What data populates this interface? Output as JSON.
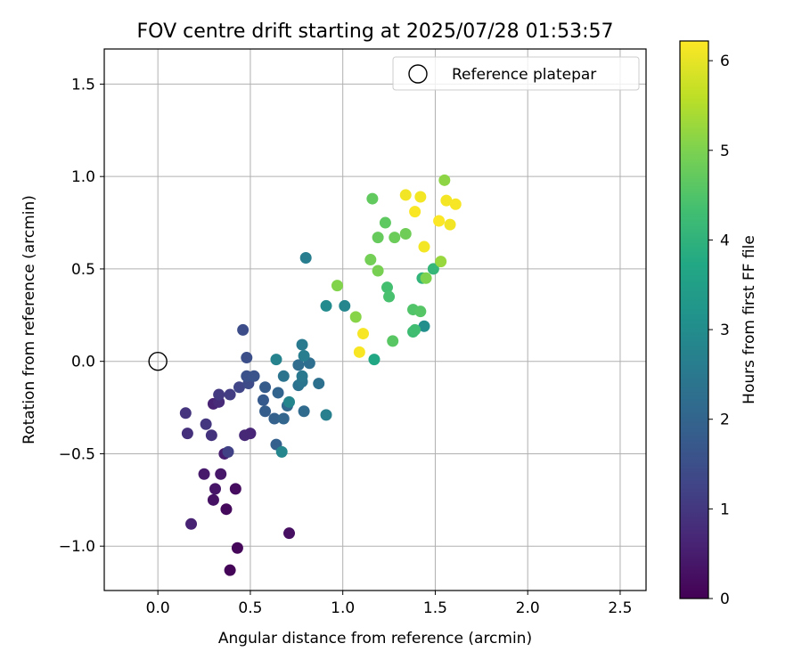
{
  "chart_data": {
    "type": "scatter",
    "title": "FOV centre drift starting at 2025/07/28 01:53:57",
    "xlabel": "Angular distance from reference (arcmin)",
    "ylabel": "Rotation from reference (arcmin)",
    "xlim": [
      -0.29,
      2.64
    ],
    "ylim": [
      -1.24,
      1.69
    ],
    "xticks": [
      0.0,
      0.5,
      1.0,
      1.5,
      2.0,
      2.5
    ],
    "xtick_labels": [
      "0.0",
      "0.5",
      "1.0",
      "1.5",
      "2.0",
      "2.5"
    ],
    "yticks": [
      -1.0,
      -0.5,
      0.0,
      0.5,
      1.0,
      1.5
    ],
    "ytick_labels": [
      "−1.0",
      "−0.5",
      "0.0",
      "0.5",
      "1.0",
      "1.5"
    ],
    "grid": true,
    "legend": {
      "placement": "top-right",
      "entries": [
        "Reference platepar"
      ]
    },
    "reference_point": {
      "x": 0.0,
      "y": 0.0
    },
    "colorbar": {
      "label": "Hours from first FF file",
      "colormap": "viridis",
      "range": [
        0,
        6.22
      ],
      "ticks": [
        0,
        1,
        2,
        3,
        4,
        5,
        6
      ],
      "tick_labels": [
        "0",
        "1",
        "2",
        "3",
        "4",
        "5",
        "6"
      ]
    },
    "points": [
      {
        "x": 0.39,
        "y": -1.13,
        "hours": 0.05
      },
      {
        "x": 0.43,
        "y": -1.01,
        "hours": 0.1
      },
      {
        "x": 0.37,
        "y": -0.8,
        "hours": 0.15
      },
      {
        "x": 0.42,
        "y": -0.69,
        "hours": 0.2
      },
      {
        "x": 0.71,
        "y": -0.93,
        "hours": 0.25
      },
      {
        "x": 0.3,
        "y": -0.75,
        "hours": 0.3
      },
      {
        "x": 0.31,
        "y": -0.69,
        "hours": 0.35
      },
      {
        "x": 0.34,
        "y": -0.61,
        "hours": 0.4
      },
      {
        "x": 0.25,
        "y": -0.61,
        "hours": 0.45
      },
      {
        "x": 0.36,
        "y": -0.5,
        "hours": 0.5
      },
      {
        "x": 0.18,
        "y": -0.88,
        "hours": 0.6
      },
      {
        "x": 0.3,
        "y": -0.23,
        "hours": 0.6
      },
      {
        "x": 0.5,
        "y": -0.39,
        "hours": 0.65
      },
      {
        "x": 0.47,
        "y": -0.4,
        "hours": 0.7
      },
      {
        "x": 0.33,
        "y": -0.22,
        "hours": 0.75
      },
      {
        "x": 0.16,
        "y": -0.39,
        "hours": 0.85
      },
      {
        "x": 0.29,
        "y": -0.4,
        "hours": 0.9
      },
      {
        "x": 0.15,
        "y": -0.28,
        "hours": 0.95
      },
      {
        "x": 0.26,
        "y": -0.34,
        "hours": 1.0
      },
      {
        "x": 0.33,
        "y": -0.18,
        "hours": 1.05
      },
      {
        "x": 0.39,
        "y": -0.18,
        "hours": 1.1
      },
      {
        "x": 0.38,
        "y": -0.49,
        "hours": 1.2
      },
      {
        "x": 0.44,
        "y": -0.14,
        "hours": 1.3
      },
      {
        "x": 0.49,
        "y": -0.12,
        "hours": 1.4
      },
      {
        "x": 0.46,
        "y": 0.17,
        "hours": 1.45
      },
      {
        "x": 0.48,
        "y": 0.02,
        "hours": 1.5
      },
      {
        "x": 0.48,
        "y": -0.08,
        "hours": 1.55
      },
      {
        "x": 0.52,
        "y": -0.08,
        "hours": 1.6
      },
      {
        "x": 0.57,
        "y": -0.21,
        "hours": 1.75
      },
      {
        "x": 0.58,
        "y": -0.14,
        "hours": 1.8
      },
      {
        "x": 0.58,
        "y": -0.27,
        "hours": 1.85
      },
      {
        "x": 0.64,
        "y": -0.45,
        "hours": 1.9
      },
      {
        "x": 0.63,
        "y": -0.31,
        "hours": 1.95
      },
      {
        "x": 0.65,
        "y": -0.17,
        "hours": 2.0
      },
      {
        "x": 0.68,
        "y": -0.31,
        "hours": 2.05
      },
      {
        "x": 0.7,
        "y": -0.24,
        "hours": 2.1
      },
      {
        "x": 0.79,
        "y": -0.27,
        "hours": 2.15
      },
      {
        "x": 0.76,
        "y": -0.02,
        "hours": 2.2
      },
      {
        "x": 0.82,
        "y": -0.01,
        "hours": 2.25
      },
      {
        "x": 0.87,
        "y": -0.12,
        "hours": 2.3
      },
      {
        "x": 0.76,
        "y": -0.13,
        "hours": 2.35
      },
      {
        "x": 0.68,
        "y": -0.08,
        "hours": 2.4
      },
      {
        "x": 0.78,
        "y": -0.11,
        "hours": 2.45
      },
      {
        "x": 0.78,
        "y": -0.08,
        "hours": 2.5
      },
      {
        "x": 0.78,
        "y": 0.09,
        "hours": 2.55
      },
      {
        "x": 0.79,
        "y": 0.03,
        "hours": 2.6
      },
      {
        "x": 0.8,
        "y": 0.56,
        "hours": 2.6
      },
      {
        "x": 0.91,
        "y": -0.29,
        "hours": 2.65
      },
      {
        "x": 0.64,
        "y": 0.01,
        "hours": 2.75
      },
      {
        "x": 0.71,
        "y": -0.22,
        "hours": 2.8
      },
      {
        "x": 0.67,
        "y": -0.49,
        "hours": 2.85
      },
      {
        "x": 1.01,
        "y": 0.3,
        "hours": 2.85
      },
      {
        "x": 0.91,
        "y": 0.3,
        "hours": 2.95
      },
      {
        "x": 1.44,
        "y": 0.19,
        "hours": 3.05
      },
      {
        "x": 1.17,
        "y": 0.01,
        "hours": 3.7
      },
      {
        "x": 1.43,
        "y": 0.45,
        "hours": 4.05
      },
      {
        "x": 1.49,
        "y": 0.5,
        "hours": 4.1
      },
      {
        "x": 1.38,
        "y": 0.16,
        "hours": 4.25
      },
      {
        "x": 1.39,
        "y": 0.17,
        "hours": 4.3
      },
      {
        "x": 1.24,
        "y": 0.4,
        "hours": 4.35
      },
      {
        "x": 1.25,
        "y": 0.35,
        "hours": 4.4
      },
      {
        "x": 1.38,
        "y": 0.28,
        "hours": 4.5
      },
      {
        "x": 1.42,
        "y": 0.27,
        "hours": 4.55
      },
      {
        "x": 1.27,
        "y": 0.11,
        "hours": 4.6
      },
      {
        "x": 1.23,
        "y": 0.75,
        "hours": 4.65
      },
      {
        "x": 1.16,
        "y": 0.88,
        "hours": 4.7
      },
      {
        "x": 1.19,
        "y": 0.67,
        "hours": 4.75
      },
      {
        "x": 1.28,
        "y": 0.67,
        "hours": 4.8
      },
      {
        "x": 1.34,
        "y": 0.69,
        "hours": 4.85
      },
      {
        "x": 1.15,
        "y": 0.55,
        "hours": 4.9
      },
      {
        "x": 1.19,
        "y": 0.49,
        "hours": 4.95
      },
      {
        "x": 1.45,
        "y": 0.45,
        "hours": 5.0
      },
      {
        "x": 0.97,
        "y": 0.41,
        "hours": 5.05
      },
      {
        "x": 1.07,
        "y": 0.24,
        "hours": 5.1
      },
      {
        "x": 1.55,
        "y": 0.98,
        "hours": 5.15
      },
      {
        "x": 1.53,
        "y": 0.54,
        "hours": 5.25
      },
      {
        "x": 1.34,
        "y": 0.9,
        "hours": 6.1
      },
      {
        "x": 1.42,
        "y": 0.89,
        "hours": 6.12
      },
      {
        "x": 1.56,
        "y": 0.87,
        "hours": 6.14
      },
      {
        "x": 1.61,
        "y": 0.85,
        "hours": 6.16
      },
      {
        "x": 1.39,
        "y": 0.81,
        "hours": 6.18
      },
      {
        "x": 1.52,
        "y": 0.76,
        "hours": 6.2
      },
      {
        "x": 1.58,
        "y": 0.74,
        "hours": 6.1
      },
      {
        "x": 1.44,
        "y": 0.62,
        "hours": 6.12
      },
      {
        "x": 1.11,
        "y": 0.15,
        "hours": 6.15
      },
      {
        "x": 1.09,
        "y": 0.05,
        "hours": 6.17
      }
    ]
  }
}
